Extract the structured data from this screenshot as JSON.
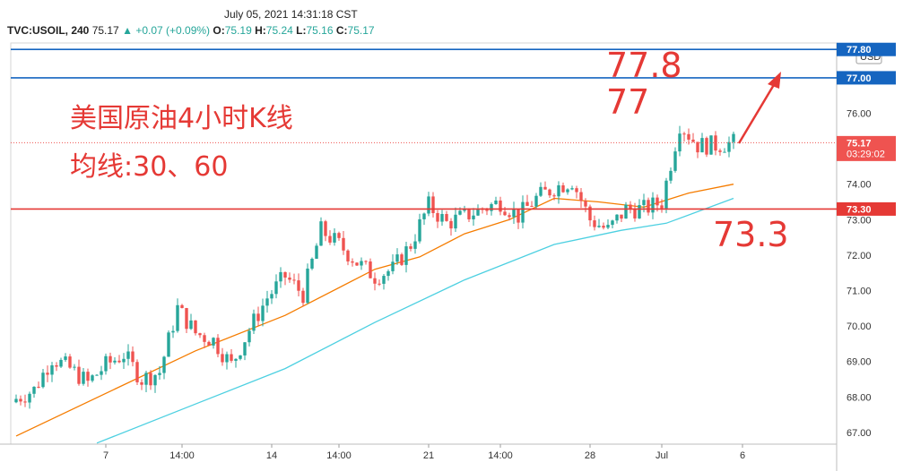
{
  "header": {
    "timestamp": "July 05, 2021 14:31:18 CST",
    "symbol": "TVC:USOIL, 240",
    "last": "75.17",
    "change": "+0.07 (+0.09%)",
    "open_label": "O:",
    "open": "75.19",
    "high_label": "H:",
    "high": "75.24",
    "low_label": "L:",
    "low": "75.16",
    "close_label": "C:",
    "close": "75.17",
    "currency": "USD"
  },
  "annotations": {
    "title_line1": "美国原油4小时K线",
    "title_line2": "均线:30、60",
    "level_high_a": "77.8",
    "level_high_b": "77",
    "level_low": "73.3"
  },
  "colors": {
    "up": "#26a69a",
    "down": "#ef5350",
    "ma30": "#f57c00",
    "ma60": "#4dd0e1",
    "blue_line": "#1565c0",
    "red_line": "#e53935",
    "annot": "#e53935"
  },
  "chart_data": {
    "type": "candlestick",
    "title": "",
    "xlabel": "",
    "ylabel": "",
    "ylim": [
      66.8,
      78.0
    ],
    "y_ticks": [
      "67.00",
      "68.00",
      "69.00",
      "70.00",
      "71.00",
      "72.00",
      "73.00",
      "74.00",
      "75.00",
      "76.00",
      "77.00",
      "77.80"
    ],
    "x_ticks": [
      "7",
      "14:00",
      "14",
      "14:00",
      "21",
      "14:00",
      "28",
      "Jul",
      "6"
    ],
    "x_tick_index": [
      20,
      37,
      57,
      72,
      92,
      108,
      128,
      144,
      162
    ],
    "price_labels": [
      {
        "value": "77.80",
        "color": "#1565c0"
      },
      {
        "value": "77.00",
        "color": "#1565c0"
      },
      {
        "value": "75.17",
        "color": "#ef5350",
        "sub": "03:29:02"
      },
      {
        "value": "73.30",
        "color": "#e53935"
      }
    ],
    "horizontal_lines": [
      {
        "y": 77.8,
        "color": "#1565c0"
      },
      {
        "y": 77.0,
        "color": "#1565c0"
      },
      {
        "y": 73.3,
        "color": "#e53935"
      },
      {
        "y": 75.17,
        "color": "#ef5350",
        "dotted": true
      }
    ],
    "series": [
      {
        "name": "OHLC",
        "close_points": [
          [
            0,
            67.95
          ],
          [
            4,
            68.2
          ],
          [
            8,
            69.1
          ],
          [
            12,
            68.8
          ],
          [
            16,
            68.4
          ],
          [
            20,
            68.9
          ],
          [
            24,
            69.2
          ],
          [
            28,
            68.5
          ],
          [
            32,
            68.7
          ],
          [
            36,
            70.5
          ],
          [
            40,
            69.8
          ],
          [
            44,
            69.6
          ],
          [
            48,
            68.9
          ],
          [
            52,
            69.9
          ],
          [
            56,
            70.8
          ],
          [
            60,
            71.4
          ],
          [
            64,
            70.9
          ],
          [
            68,
            72.7
          ],
          [
            72,
            72.3
          ],
          [
            76,
            71.8
          ],
          [
            80,
            71.4
          ],
          [
            84,
            71.6
          ],
          [
            88,
            72.3
          ],
          [
            92,
            73.4
          ],
          [
            96,
            72.9
          ],
          [
            100,
            73.1
          ],
          [
            104,
            73.3
          ],
          [
            108,
            73.5
          ],
          [
            112,
            73.1
          ],
          [
            116,
            73.6
          ],
          [
            120,
            73.9
          ],
          [
            124,
            74.1
          ],
          [
            128,
            73.0
          ],
          [
            132,
            72.7
          ],
          [
            136,
            73.3
          ],
          [
            140,
            73.3
          ],
          [
            144,
            73.5
          ],
          [
            148,
            75.7
          ],
          [
            152,
            75.1
          ],
          [
            156,
            75.1
          ],
          [
            160,
            75.17
          ]
        ],
        "n": 161
      },
      {
        "name": "MA30",
        "points": [
          [
            0,
            66.9
          ],
          [
            20,
            68.1
          ],
          [
            40,
            69.3
          ],
          [
            60,
            70.3
          ],
          [
            80,
            71.6
          ],
          [
            90,
            71.95
          ],
          [
            100,
            72.6
          ],
          [
            110,
            73.0
          ],
          [
            120,
            73.6
          ],
          [
            130,
            73.5
          ],
          [
            140,
            73.35
          ],
          [
            150,
            73.75
          ],
          [
            160,
            74.0
          ]
        ]
      },
      {
        "name": "MA60",
        "points": [
          [
            18,
            66.7
          ],
          [
            40,
            67.8
          ],
          [
            60,
            68.8
          ],
          [
            80,
            70.1
          ],
          [
            100,
            71.3
          ],
          [
            120,
            72.3
          ],
          [
            135,
            72.7
          ],
          [
            145,
            72.9
          ],
          [
            160,
            73.6
          ]
        ]
      }
    ]
  }
}
